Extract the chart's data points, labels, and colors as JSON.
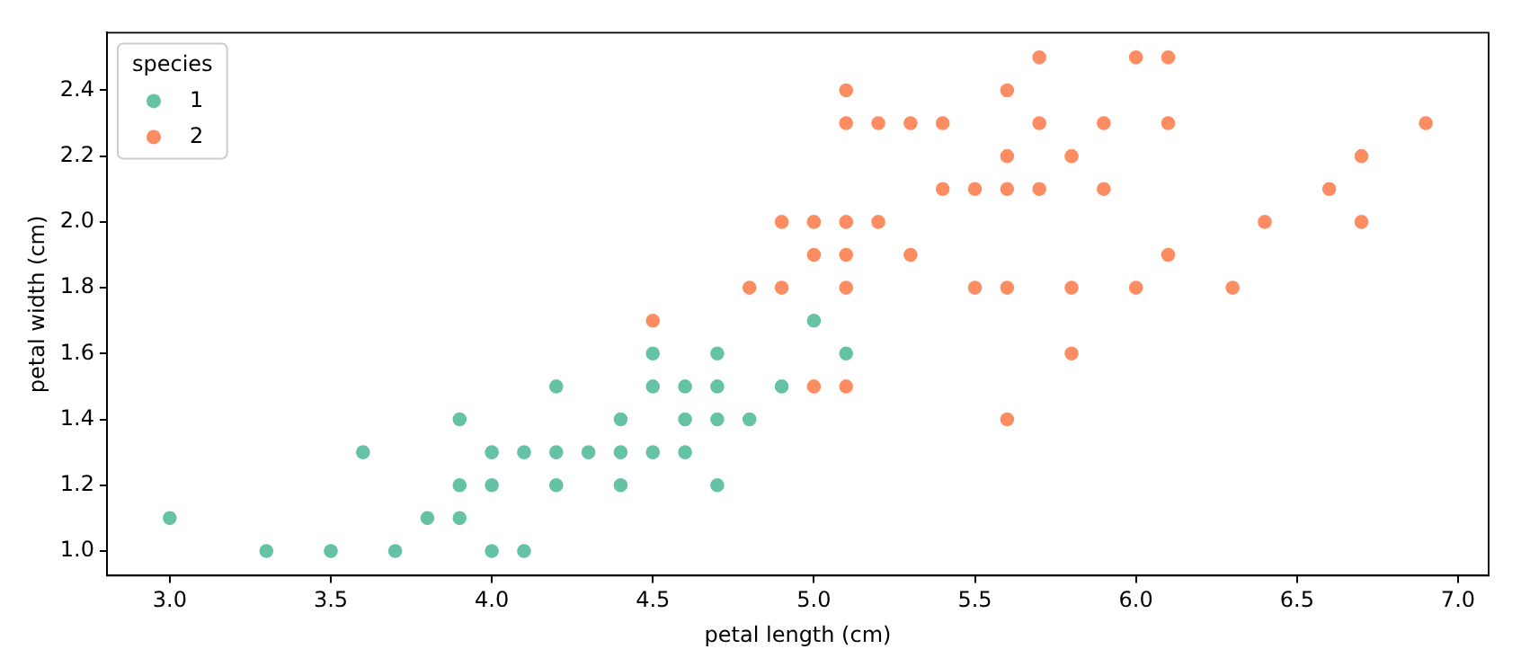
{
  "chart_data": {
    "type": "scatter",
    "xlabel": "petal length (cm)",
    "ylabel": "petal width (cm)",
    "legend_title": "species",
    "legend": "top left",
    "marker": "circle",
    "grid": false,
    "xlim": [
      2.805,
      7.095
    ],
    "ylim": [
      0.925,
      2.575
    ],
    "xticks": [
      {
        "value": 3,
        "label": "3.0"
      },
      {
        "value": 3.5,
        "label": "3.5"
      },
      {
        "value": 4,
        "label": "4.0"
      },
      {
        "value": 4.5,
        "label": "4.5"
      },
      {
        "value": 5,
        "label": "5.0"
      },
      {
        "value": 5.5,
        "label": "5.5"
      },
      {
        "value": 6,
        "label": "6.0"
      },
      {
        "value": 6.5,
        "label": "6.5"
      },
      {
        "value": 7,
        "label": "7.0"
      }
    ],
    "yticks": [
      {
        "value": 1,
        "label": "1.0"
      },
      {
        "value": 1.2,
        "label": "1.2"
      },
      {
        "value": 1.4,
        "label": "1.4"
      },
      {
        "value": 1.6,
        "label": "1.6"
      },
      {
        "value": 1.8,
        "label": "1.8"
      },
      {
        "value": 2,
        "label": "2.0"
      },
      {
        "value": 2.2,
        "label": "2.2"
      },
      {
        "value": 2.4,
        "label": "2.4"
      }
    ],
    "series": [
      {
        "name": "1",
        "color": "#66c2a5",
        "x": [
          4.7,
          4.5,
          4.9,
          4.0,
          4.6,
          4.5,
          4.7,
          3.3,
          4.6,
          3.9,
          3.5,
          4.2,
          4.0,
          3.6,
          4.4,
          4.1,
          3.9,
          4.7,
          4.3,
          4.8,
          5.0,
          3.8,
          3.7,
          3.9,
          5.1,
          4.5,
          4.7,
          4.4,
          4.1,
          4.4,
          4.6,
          4.0,
          4.2,
          4.2,
          3.0
        ],
        "values": [
          1.4,
          1.5,
          1.5,
          1.3,
          1.5,
          1.3,
          1.6,
          1.0,
          1.3,
          1.4,
          1.0,
          1.5,
          1.0,
          1.3,
          1.4,
          1.0,
          1.1,
          1.2,
          1.3,
          1.4,
          1.7,
          1.1,
          1.0,
          1.2,
          1.6,
          1.6,
          1.5,
          1.3,
          1.3,
          1.2,
          1.4,
          1.2,
          1.3,
          1.2,
          1.1
        ]
      },
      {
        "name": "2",
        "color": "#fc8d62",
        "x": [
          6.0,
          5.1,
          5.9,
          5.6,
          5.8,
          6.6,
          4.5,
          6.3,
          5.8,
          6.1,
          5.1,
          5.3,
          5.5,
          5.0,
          5.1,
          5.3,
          5.5,
          6.7,
          6.9,
          5.0,
          5.7,
          4.9,
          6.7,
          4.9,
          5.7,
          6.0,
          4.8,
          5.6,
          5.8,
          6.1,
          6.4,
          5.6,
          5.1,
          5.6,
          6.1,
          5.6,
          5.4,
          5.1,
          5.9,
          5.7,
          5.2,
          5.0,
          5.2,
          5.4,
          5.1
        ],
        "values": [
          2.5,
          1.9,
          2.1,
          1.8,
          2.2,
          2.1,
          1.7,
          1.8,
          1.8,
          2.5,
          2.0,
          1.9,
          2.1,
          2.0,
          2.4,
          2.3,
          1.8,
          2.2,
          2.3,
          1.5,
          2.3,
          2.0,
          2.0,
          1.8,
          2.1,
          1.8,
          1.8,
          2.1,
          1.6,
          1.9,
          2.0,
          2.2,
          1.5,
          1.4,
          2.3,
          2.4,
          2.1,
          2.3,
          2.3,
          2.5,
          2.3,
          1.9,
          2.0,
          2.3,
          1.8
        ]
      }
    ]
  }
}
